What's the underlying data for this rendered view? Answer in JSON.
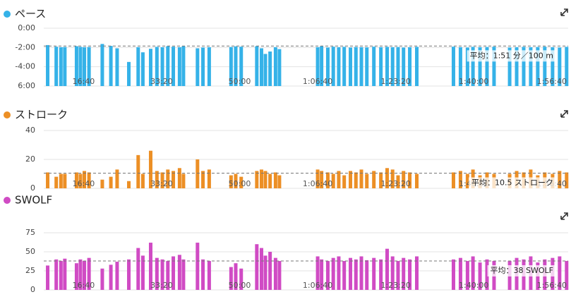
{
  "chart_data": [
    {
      "type": "bar",
      "title": "ペース",
      "color": "#35b2e8",
      "x": [
        540,
        650,
        710,
        760,
        910,
        960,
        1010,
        1070,
        1240,
        1350,
        1430,
        1580,
        1700,
        1760,
        1860,
        1940,
        2010,
        2080,
        2150,
        2230,
        2280,
        2460,
        2530,
        2610,
        2890,
        2950,
        3020,
        3220,
        3280,
        3330,
        3390,
        3460,
        3510,
        4000,
        4050,
        4130,
        4200,
        4270,
        4340,
        4420,
        4490,
        4560,
        4630,
        4720,
        4810,
        4890,
        4960,
        5030,
        5100,
        5180,
        5270,
        5740,
        5830,
        5920,
        5990,
        6080,
        6170,
        6260,
        6460,
        6550,
        6640,
        6730,
        6820,
        6910,
        7010,
        7100,
        7190
      ],
      "values": [
        105,
        115,
        118,
        117,
        112,
        116,
        118,
        117,
        98,
        110,
        125,
        210,
        118,
        150,
        128,
        116,
        118,
        112,
        115,
        118,
        112,
        125,
        120,
        118,
        117,
        113,
        115,
        112,
        125,
        160,
        145,
        118,
        130,
        118,
        112,
        120,
        115,
        118,
        116,
        120,
        117,
        118,
        119,
        115,
        118,
        116,
        118,
        117,
        120,
        118,
        116,
        115,
        118,
        120,
        116,
        118,
        117,
        115,
        120,
        118,
        116,
        118,
        117,
        115,
        118,
        120,
        116
      ],
      "xlim": [
        490,
        7210
      ],
      "xticks": [
        {
          "value": 1000,
          "label": "16:40"
        },
        {
          "value": 2000,
          "label": "33:20"
        },
        {
          "value": 3000,
          "label": "50:00"
        },
        {
          "value": 4000,
          "label": "1:06:40"
        },
        {
          "value": 5000,
          "label": "1:23:20"
        },
        {
          "value": 6000,
          "label": "1:40:00"
        },
        {
          "value": 7000,
          "label": "1:56:40"
        }
      ],
      "ylim": [
        360,
        0
      ],
      "yticks": [
        {
          "value": 0,
          "label": "0:00"
        },
        {
          "value": 120,
          "label": "-2:00"
        },
        {
          "value": 240,
          "label": "-4:00"
        },
        {
          "value": 360,
          "label": "6:00"
        }
      ],
      "average": {
        "value": 111,
        "label": "平均：1:51 分／100 m"
      },
      "grid": true
    },
    {
      "type": "bar",
      "title": "ストローク",
      "color": "#ec8f25",
      "x": [
        540,
        650,
        710,
        760,
        910,
        960,
        1010,
        1070,
        1240,
        1350,
        1430,
        1580,
        1700,
        1760,
        1860,
        1940,
        2010,
        2080,
        2150,
        2230,
        2280,
        2460,
        2530,
        2610,
        2890,
        2950,
        3020,
        3220,
        3280,
        3330,
        3390,
        3460,
        3510,
        4000,
        4050,
        4130,
        4200,
        4270,
        4340,
        4420,
        4490,
        4560,
        4630,
        4720,
        4810,
        4890,
        4960,
        5030,
        5100,
        5180,
        5270,
        5740,
        5830,
        5920,
        5990,
        6080,
        6170,
        6260,
        6460,
        6550,
        6640,
        6730,
        6820,
        6910,
        7010,
        7100,
        7190
      ],
      "values": [
        11,
        8,
        10,
        10,
        11,
        10,
        12,
        11,
        6,
        8,
        13,
        5,
        23,
        10,
        26,
        12,
        11,
        13,
        12,
        14,
        10,
        20,
        12,
        13,
        9,
        10,
        8,
        12,
        13,
        12,
        10,
        11,
        9,
        13,
        12,
        11,
        10,
        12,
        9,
        12,
        11,
        13,
        10,
        12,
        11,
        14,
        13,
        9,
        12,
        11,
        10,
        11,
        12,
        10,
        13,
        9,
        11,
        10,
        10,
        12,
        11,
        13,
        9,
        11,
        10,
        12,
        11
      ],
      "xlim": [
        490,
        7210
      ],
      "xticks": [
        {
          "value": 1000,
          "label": "16:40"
        },
        {
          "value": 2000,
          "label": "33:20"
        },
        {
          "value": 3000,
          "label": "50:00"
        },
        {
          "value": 4000,
          "label": "1:06:40"
        },
        {
          "value": 5000,
          "label": "1:23:20"
        },
        {
          "value": 6000,
          "label": "1:40:00"
        },
        {
          "value": 7000,
          "label": "1:56:40"
        }
      ],
      "ylim": [
        0,
        40
      ],
      "yticks": [
        0,
        20,
        40
      ],
      "average": {
        "value": 10.5,
        "label": "平均：10.5 ストローク"
      },
      "grid": true
    },
    {
      "type": "bar",
      "title": "SWOLF",
      "color": "#d04bc4",
      "x": [
        540,
        650,
        710,
        760,
        910,
        960,
        1010,
        1070,
        1240,
        1350,
        1430,
        1580,
        1700,
        1760,
        1860,
        1940,
        2010,
        2080,
        2150,
        2230,
        2280,
        2460,
        2530,
        2610,
        2890,
        2950,
        3020,
        3220,
        3280,
        3330,
        3390,
        3460,
        3510,
        4000,
        4050,
        4130,
        4200,
        4270,
        4340,
        4420,
        4490,
        4560,
        4630,
        4720,
        4810,
        4890,
        4960,
        5030,
        5100,
        5180,
        5270,
        5740,
        5830,
        5920,
        5990,
        6080,
        6170,
        6260,
        6460,
        6550,
        6640,
        6730,
        6820,
        6910,
        7010,
        7100,
        7190
      ],
      "values": [
        32,
        40,
        38,
        41,
        35,
        40,
        38,
        42,
        28,
        33,
        37,
        40,
        55,
        45,
        62,
        42,
        40,
        38,
        44,
        46,
        40,
        62,
        40,
        38,
        30,
        35,
        28,
        60,
        55,
        45,
        50,
        42,
        38,
        44,
        40,
        38,
        42,
        44,
        38,
        42,
        40,
        44,
        39,
        42,
        40,
        54,
        44,
        38,
        42,
        40,
        44,
        40,
        42,
        38,
        44,
        36,
        40,
        38,
        38,
        42,
        40,
        44,
        36,
        40,
        42,
        44,
        38
      ],
      "xlim": [
        490,
        7210
      ],
      "xticks": [
        {
          "value": 1000,
          "label": "16:40"
        },
        {
          "value": 2000,
          "label": "33:20"
        },
        {
          "value": 3000,
          "label": "50:00"
        },
        {
          "value": 4000,
          "label": "1:06:40"
        },
        {
          "value": 5000,
          "label": "1:23:20"
        },
        {
          "value": 6000,
          "label": "1:40:00"
        },
        {
          "value": 7000,
          "label": "1:56:40"
        }
      ],
      "ylim": [
        0,
        75
      ],
      "yticks": [
        0,
        25,
        50,
        75
      ],
      "average": {
        "value": 38,
        "label": "平均：38 SWOLF"
      },
      "grid": true
    }
  ]
}
